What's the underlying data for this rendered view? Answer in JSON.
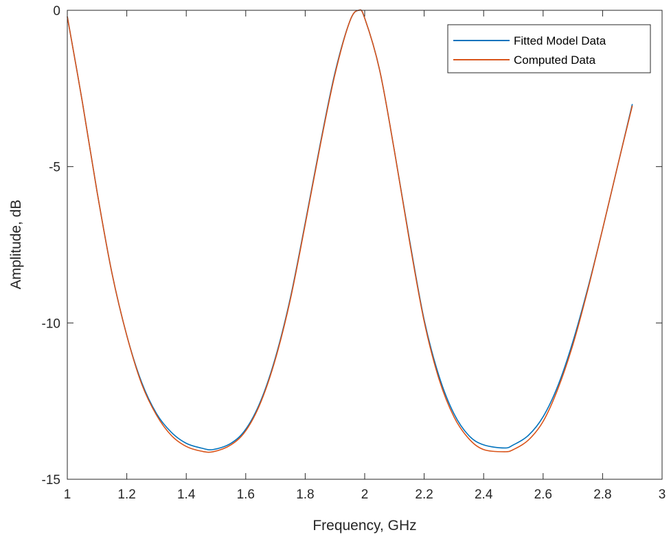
{
  "chart_data": {
    "type": "line",
    "title": "",
    "xlabel": "Frequency, GHz",
    "ylabel": "Amplitude, dB",
    "xlim": [
      1,
      3
    ],
    "ylim": [
      -15,
      0
    ],
    "xticks": [
      1,
      1.2,
      1.4,
      1.6,
      1.8,
      2,
      2.2,
      2.4,
      2.6,
      2.8,
      3
    ],
    "xtick_labels": [
      "1",
      "1.2",
      "1.4",
      "1.6",
      "1.8",
      "2",
      "2.2",
      "2.4",
      "2.6",
      "2.8",
      "3"
    ],
    "yticks": [
      -15,
      -10,
      -5,
      0
    ],
    "ytick_labels": [
      "-15",
      "-10",
      "-5",
      "0"
    ],
    "grid": false,
    "legend_position": "top-right",
    "x": [
      1.0,
      1.05,
      1.1,
      1.15,
      1.2,
      1.25,
      1.3,
      1.35,
      1.4,
      1.45,
      1.49,
      1.55,
      1.6,
      1.65,
      1.7,
      1.75,
      1.8,
      1.85,
      1.9,
      1.95,
      1.98,
      2.0,
      2.05,
      2.1,
      2.15,
      2.2,
      2.25,
      2.3,
      2.35,
      2.4,
      2.47,
      2.5,
      2.55,
      2.6,
      2.65,
      2.7,
      2.75,
      2.8,
      2.85,
      2.9
    ],
    "series": [
      {
        "name": "Fitted Model Data",
        "color": "#0072BD",
        "values": [
          -0.2,
          -2.9,
          -5.8,
          -8.4,
          -10.4,
          -11.9,
          -12.9,
          -13.5,
          -13.85,
          -14.0,
          -14.05,
          -13.85,
          -13.4,
          -12.5,
          -11.1,
          -9.2,
          -6.8,
          -4.3,
          -2.0,
          -0.35,
          0,
          -0.25,
          -1.9,
          -4.5,
          -7.3,
          -9.9,
          -11.7,
          -12.9,
          -13.6,
          -13.9,
          -14.0,
          -13.9,
          -13.6,
          -13.0,
          -12.0,
          -10.6,
          -8.9,
          -7.0,
          -5.0,
          -3.0
        ]
      },
      {
        "name": "Computed Data",
        "color": "#D95319",
        "values": [
          -0.2,
          -2.9,
          -5.8,
          -8.4,
          -10.4,
          -11.95,
          -12.95,
          -13.6,
          -13.95,
          -14.1,
          -14.12,
          -13.9,
          -13.45,
          -12.55,
          -11.15,
          -9.25,
          -6.85,
          -4.35,
          -2.05,
          -0.35,
          0,
          -0.25,
          -1.9,
          -4.5,
          -7.35,
          -9.95,
          -11.8,
          -13.0,
          -13.7,
          -14.05,
          -14.12,
          -14.05,
          -13.75,
          -13.15,
          -12.1,
          -10.7,
          -8.95,
          -7.0,
          -5.0,
          -3.05
        ]
      }
    ]
  }
}
